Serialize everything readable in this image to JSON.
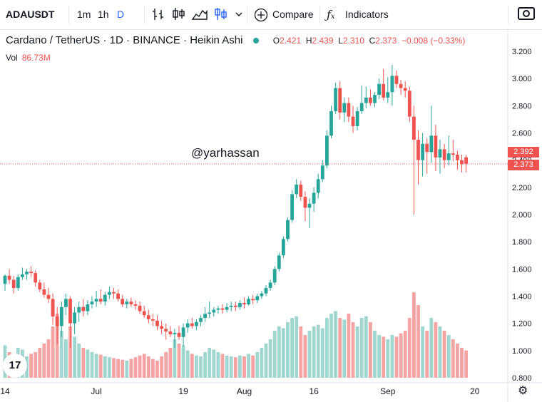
{
  "toolbar": {
    "symbol": "ADAUSDT",
    "intervals": [
      "1m",
      "1h",
      "D"
    ],
    "compare_label": "Compare",
    "indicators_label": "Indicators",
    "icons": [
      "bar-chart-icon",
      "candles-icon",
      "area-chart-icon",
      "heikin-ashi-icon",
      "chevron-down-icon",
      "plus-circle-icon",
      "fx-icon",
      "camera-icon"
    ]
  },
  "legend": {
    "name": "Cardano / TetherUS",
    "interval": "1D",
    "exchange": "BINANCE",
    "style": "Heikin Ashi",
    "open": "2.421",
    "high": "2.439",
    "low": "2.310",
    "close": "2.373",
    "change": "−0.008 (−0.33%)",
    "vol_label": "Vol",
    "vol_value": "86.73M"
  },
  "watermark": "@yarhassan",
  "price_labels": {
    "upper": "2.392",
    "lower": "2.373"
  },
  "colors": {
    "up": "#26a69a",
    "down": "#ef5350",
    "vol_up": "#9fd7d0",
    "vol_down": "#f5a3a3"
  },
  "chart_data": {
    "type": "candlestick",
    "style": "Heikin Ashi",
    "y_ticks": [
      "3.200",
      "3.000",
      "2.800",
      "2.600",
      "2.400",
      "2.200",
      "2.000",
      "1.800",
      "1.600",
      "1.400",
      "1.200",
      "1.000",
      "0.800"
    ],
    "x_ticks": [
      "14",
      "Jul",
      "19",
      "Aug",
      "16",
      "Sep",
      "20"
    ],
    "x_tick_index": [
      0,
      21,
      41,
      55,
      71,
      88,
      108
    ],
    "last_price_line": 2.373,
    "candles": [
      [
        1.49,
        1.56,
        1.44,
        1.55
      ],
      [
        1.55,
        1.6,
        1.49,
        1.52
      ],
      [
        1.52,
        1.55,
        1.42,
        1.46
      ],
      [
        1.46,
        1.56,
        1.44,
        1.54
      ],
      [
        1.54,
        1.61,
        1.52,
        1.56
      ],
      [
        1.56,
        1.6,
        1.52,
        1.58
      ],
      [
        1.58,
        1.62,
        1.54,
        1.57
      ],
      [
        1.57,
        1.59,
        1.47,
        1.5
      ],
      [
        1.5,
        1.52,
        1.43,
        1.45
      ],
      [
        1.45,
        1.5,
        1.39,
        1.41
      ],
      [
        1.41,
        1.46,
        1.35,
        1.38
      ],
      [
        1.38,
        1.42,
        1.19,
        1.25
      ],
      [
        1.25,
        1.32,
        1.05,
        1.18
      ],
      [
        1.18,
        1.36,
        1.1,
        1.32
      ],
      [
        1.32,
        1.42,
        1.26,
        1.38
      ],
      [
        1.38,
        1.4,
        1.02,
        1.2
      ],
      [
        1.2,
        1.32,
        1.12,
        1.28
      ],
      [
        1.28,
        1.36,
        1.21,
        1.32
      ],
      [
        1.32,
        1.38,
        1.25,
        1.29
      ],
      [
        1.29,
        1.37,
        1.26,
        1.34
      ],
      [
        1.34,
        1.4,
        1.31,
        1.36
      ],
      [
        1.36,
        1.44,
        1.32,
        1.38
      ],
      [
        1.38,
        1.45,
        1.34,
        1.36
      ],
      [
        1.36,
        1.43,
        1.33,
        1.41
      ],
      [
        1.41,
        1.47,
        1.38,
        1.43
      ],
      [
        1.43,
        1.46,
        1.38,
        1.42
      ],
      [
        1.42,
        1.45,
        1.36,
        1.38
      ],
      [
        1.38,
        1.41,
        1.32,
        1.34
      ],
      [
        1.34,
        1.38,
        1.31,
        1.36
      ],
      [
        1.36,
        1.39,
        1.32,
        1.34
      ],
      [
        1.34,
        1.37,
        1.3,
        1.33
      ],
      [
        1.33,
        1.36,
        1.27,
        1.29
      ],
      [
        1.29,
        1.33,
        1.24,
        1.26
      ],
      [
        1.26,
        1.3,
        1.2,
        1.23
      ],
      [
        1.23,
        1.27,
        1.18,
        1.22
      ],
      [
        1.22,
        1.26,
        1.15,
        1.18
      ],
      [
        1.18,
        1.22,
        1.12,
        1.16
      ],
      [
        1.16,
        1.2,
        1.08,
        1.14
      ],
      [
        1.14,
        1.18,
        1.1,
        1.12
      ],
      [
        1.12,
        1.16,
        1.02,
        1.13
      ],
      [
        1.13,
        1.18,
        1.08,
        1.1
      ],
      [
        1.1,
        1.2,
        1.03,
        1.17
      ],
      [
        1.17,
        1.23,
        1.13,
        1.2
      ],
      [
        1.2,
        1.24,
        1.16,
        1.18
      ],
      [
        1.18,
        1.23,
        1.15,
        1.21
      ],
      [
        1.21,
        1.26,
        1.18,
        1.24
      ],
      [
        1.24,
        1.32,
        1.21,
        1.27
      ],
      [
        1.27,
        1.36,
        1.24,
        1.28
      ],
      [
        1.28,
        1.32,
        1.25,
        1.3
      ],
      [
        1.3,
        1.33,
        1.27,
        1.31
      ],
      [
        1.31,
        1.34,
        1.27,
        1.3
      ],
      [
        1.3,
        1.35,
        1.28,
        1.32
      ],
      [
        1.32,
        1.36,
        1.29,
        1.33
      ],
      [
        1.33,
        1.36,
        1.29,
        1.32
      ],
      [
        1.32,
        1.37,
        1.3,
        1.35
      ],
      [
        1.35,
        1.39,
        1.31,
        1.34
      ],
      [
        1.34,
        1.4,
        1.33,
        1.38
      ],
      [
        1.38,
        1.41,
        1.34,
        1.37
      ],
      [
        1.37,
        1.42,
        1.35,
        1.4
      ],
      [
        1.4,
        1.44,
        1.38,
        1.42
      ],
      [
        1.42,
        1.48,
        1.4,
        1.46
      ],
      [
        1.46,
        1.52,
        1.44,
        1.5
      ],
      [
        1.5,
        1.62,
        1.48,
        1.6
      ],
      [
        1.6,
        1.72,
        1.58,
        1.7
      ],
      [
        1.7,
        1.84,
        1.68,
        1.82
      ],
      [
        1.82,
        1.98,
        1.8,
        1.96
      ],
      [
        1.96,
        2.18,
        1.94,
        2.15
      ],
      [
        2.15,
        2.26,
        2.12,
        2.22
      ],
      [
        2.22,
        2.25,
        2.1,
        2.13
      ],
      [
        2.13,
        2.17,
        1.95,
        2.05
      ],
      [
        2.05,
        2.12,
        1.9,
        2.08
      ],
      [
        2.08,
        2.2,
        2.02,
        2.16
      ],
      [
        2.16,
        2.3,
        2.12,
        2.26
      ],
      [
        2.26,
        2.4,
        2.24,
        2.36
      ],
      [
        2.36,
        2.62,
        2.34,
        2.58
      ],
      [
        2.58,
        2.8,
        2.56,
        2.76
      ],
      [
        2.76,
        2.97,
        2.74,
        2.93
      ],
      [
        2.93,
        2.98,
        2.7,
        2.75
      ],
      [
        2.75,
        2.86,
        2.68,
        2.82
      ],
      [
        2.82,
        2.86,
        2.68,
        2.72
      ],
      [
        2.72,
        2.8,
        2.6,
        2.65
      ],
      [
        2.65,
        2.79,
        2.62,
        2.76
      ],
      [
        2.76,
        2.95,
        2.74,
        2.82
      ],
      [
        2.82,
        2.94,
        2.78,
        2.86
      ],
      [
        2.86,
        2.92,
        2.8,
        2.82
      ],
      [
        2.82,
        2.9,
        2.79,
        2.88
      ],
      [
        2.88,
        3.0,
        2.85,
        2.96
      ],
      [
        2.96,
        3.07,
        2.84,
        2.86
      ],
      [
        2.86,
        3.01,
        2.82,
        2.9
      ],
      [
        2.9,
        3.1,
        2.8,
        3.02
      ],
      [
        3.02,
        3.06,
        2.93,
        2.96
      ],
      [
        2.96,
        2.99,
        2.88,
        2.93
      ],
      [
        2.93,
        2.98,
        2.86,
        2.91
      ],
      [
        2.91,
        2.94,
        2.68,
        2.72
      ],
      [
        2.72,
        2.8,
        2.0,
        2.55
      ],
      [
        2.55,
        2.62,
        2.22,
        2.4
      ],
      [
        2.4,
        2.6,
        2.28,
        2.52
      ],
      [
        2.52,
        2.56,
        2.3,
        2.46
      ],
      [
        2.46,
        2.8,
        2.38,
        2.58
      ],
      [
        2.58,
        2.66,
        2.32,
        2.42
      ],
      [
        2.42,
        2.55,
        2.3,
        2.48
      ],
      [
        2.48,
        2.52,
        2.34,
        2.4
      ],
      [
        2.4,
        2.58,
        2.36,
        2.45
      ],
      [
        2.45,
        2.55,
        2.39,
        2.44
      ],
      [
        2.44,
        2.47,
        2.33,
        2.4
      ],
      [
        2.4,
        2.44,
        2.31,
        2.37
      ],
      [
        2.421,
        2.439,
        2.31,
        2.373
      ]
    ],
    "volume": [
      0.38,
      0.3,
      0.28,
      0.35,
      0.33,
      0.25,
      0.28,
      0.3,
      0.35,
      0.4,
      0.45,
      0.6,
      0.75,
      0.55,
      0.45,
      0.6,
      0.48,
      0.4,
      0.35,
      0.33,
      0.3,
      0.28,
      0.27,
      0.25,
      0.24,
      0.23,
      0.22,
      0.21,
      0.2,
      0.22,
      0.24,
      0.26,
      0.28,
      0.25,
      0.22,
      0.2,
      0.25,
      0.3,
      0.35,
      0.45,
      0.4,
      0.38,
      0.32,
      0.28,
      0.26,
      0.25,
      0.3,
      0.35,
      0.33,
      0.3,
      0.28,
      0.26,
      0.25,
      0.24,
      0.26,
      0.25,
      0.28,
      0.26,
      0.3,
      0.35,
      0.4,
      0.45,
      0.55,
      0.6,
      0.58,
      0.65,
      0.7,
      0.72,
      0.6,
      0.5,
      0.55,
      0.6,
      0.62,
      0.58,
      0.7,
      0.75,
      0.78,
      0.7,
      0.68,
      0.75,
      0.65,
      0.6,
      0.7,
      0.72,
      0.65,
      0.55,
      0.5,
      0.48,
      0.45,
      0.5,
      0.48,
      0.52,
      0.55,
      0.7,
      1.0,
      0.85,
      0.6,
      0.55,
      0.7,
      0.65,
      0.6,
      0.55,
      0.5,
      0.45,
      0.4,
      0.35,
      0.32
    ],
    "ylim": [
      0.8,
      3.2
    ]
  }
}
